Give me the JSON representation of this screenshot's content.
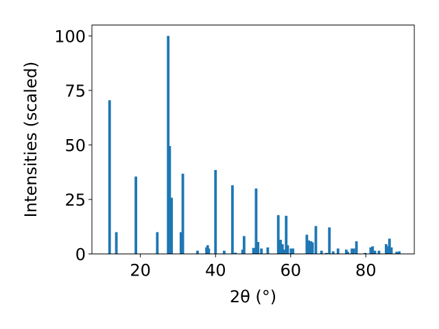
{
  "chart_data": {
    "type": "bar",
    "xlabel": "2θ (°)",
    "ylabel": "Intensities (scaled)",
    "xlim": [
      7.1,
      92.9
    ],
    "ylim": [
      0,
      105
    ],
    "xticks": [
      20,
      40,
      60,
      80
    ],
    "xtick_labels": [
      "20",
      "40",
      "60",
      "80"
    ],
    "yticks": [
      0,
      25,
      50,
      75,
      100
    ],
    "ytick_labels": [
      "0",
      "25",
      "50",
      "75",
      "100"
    ],
    "grid": false,
    "bar_color": "#1f77b4",
    "bar_width": 0.7,
    "x": [
      11.8,
      13.6,
      18.8,
      24.5,
      27.4,
      27.8,
      28.3,
      30.8,
      31.3,
      35.2,
      37.6,
      37.9,
      38.2,
      40.0,
      42.3,
      44.5,
      45.3,
      47.2,
      47.6,
      50.1,
      50.8,
      51.3,
      52.2,
      53.9,
      56.7,
      57.3,
      57.8,
      58.3,
      58.8,
      59.2,
      60.1,
      60.6,
      64.3,
      64.8,
      65.4,
      65.8,
      66.7,
      68.2,
      69.5,
      70.3,
      71.3,
      72.6,
      74.8,
      75.2,
      76.3,
      76.8,
      77.5,
      79.8,
      81.3,
      81.8,
      82.4,
      83.5,
      85.4,
      85.8,
      86.3,
      86.8,
      88.2,
      88.9
    ],
    "values": [
      70.5,
      10.0,
      35.5,
      10.0,
      100.0,
      49.5,
      25.8,
      10.0,
      36.8,
      1.5,
      3.0,
      4.0,
      2.5,
      38.5,
      1.5,
      31.5,
      0.6,
      2.0,
      8.2,
      2.8,
      30.0,
      5.5,
      2.5,
      3.0,
      17.8,
      6.5,
      4.5,
      2.0,
      17.5,
      4.0,
      2.5,
      2.5,
      8.8,
      6.2,
      5.8,
      5.3,
      12.8,
      1.5,
      0.5,
      12.2,
      1.2,
      2.5,
      2.0,
      1.0,
      2.5,
      2.5,
      5.8,
      0.5,
      3.0,
      3.5,
      1.5,
      1.5,
      4.5,
      3.5,
      7.0,
      3.0,
      1.0,
      1.2
    ]
  }
}
